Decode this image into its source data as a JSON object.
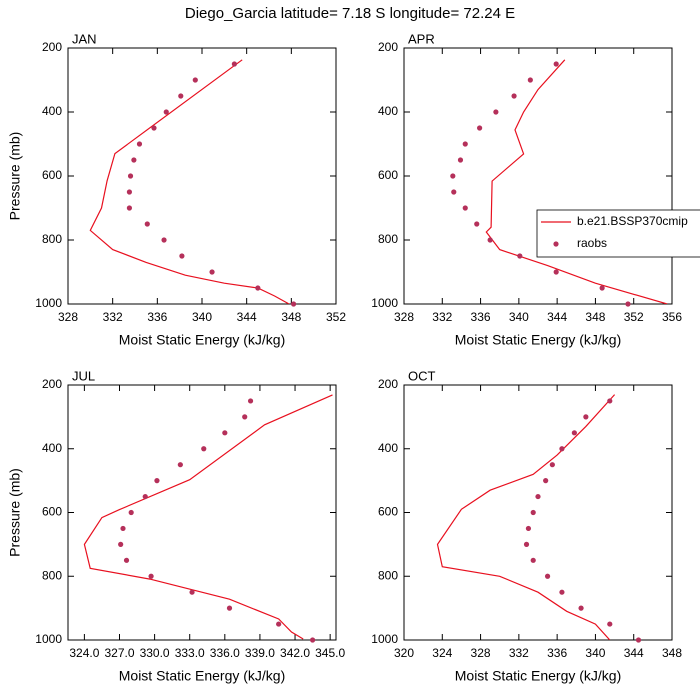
{
  "title": "Diego_Garcia  latitude= 7.18 S longitude= 72.24 E",
  "chart_data": [
    {
      "type": "line",
      "title": "JAN",
      "xlabel": "Moist Static Energy (kJ/kg)",
      "ylabel": "Pressure (mb)",
      "xlim": [
        328,
        352
      ],
      "xticks": [
        328,
        332,
        336,
        340,
        344,
        348,
        352
      ],
      "ylim": [
        1000,
        200
      ],
      "yticks": [
        200,
        400,
        600,
        800,
        1000
      ],
      "series": [
        {
          "color": "#e8101f",
          "style": "line",
          "x": [
            343.6,
            332.2,
            331.5,
            331.0,
            330.0,
            332.0,
            335.0,
            338.5,
            342.0,
            345.0,
            346.5,
            347.8
          ],
          "y": [
            237,
            530,
            615,
            700,
            770,
            830,
            870,
            910,
            935,
            950,
            975,
            1000
          ]
        },
        {
          "color": "#b5305a",
          "style": "marker",
          "x": [
            342.9,
            339.4,
            338.1,
            336.8,
            335.7,
            334.4,
            333.9,
            333.6,
            333.5,
            333.5,
            335.1,
            336.6,
            338.2,
            340.9,
            345.0,
            348.2
          ],
          "y": [
            250,
            300,
            350,
            400,
            450,
            500,
            550,
            600,
            650,
            700,
            750,
            800,
            850,
            900,
            950,
            1000
          ]
        }
      ]
    },
    {
      "type": "line",
      "title": "APR",
      "xlabel": "Moist Static Energy (kJ/kg)",
      "xlim": [
        328,
        356
      ],
      "xticks": [
        328,
        332,
        336,
        340,
        344,
        348,
        352,
        356
      ],
      "ylim": [
        1000,
        200
      ],
      "yticks": [
        200,
        400,
        600,
        800,
        1000
      ],
      "legend": "right",
      "series": [
        {
          "name": "b.e21.BSSP370cmip",
          "color": "#e8101f",
          "style": "line",
          "x": [
            344.8,
            342.0,
            340.5,
            339.6,
            340.5,
            337.2,
            337.1,
            336.6,
            338.0,
            343.0,
            348.0,
            355.5
          ],
          "y": [
            237,
            330,
            400,
            456,
            531,
            616,
            760,
            775,
            830,
            880,
            935,
            1000
          ]
        },
        {
          "name": "raobs",
          "color": "#b5305a",
          "style": "marker",
          "x": [
            343.9,
            341.2,
            339.5,
            337.6,
            335.9,
            334.4,
            333.9,
            333.1,
            333.2,
            334.4,
            335.6,
            337.0,
            340.1,
            343.9,
            348.7,
            351.4
          ],
          "y": [
            250,
            300,
            350,
            400,
            450,
            500,
            550,
            600,
            650,
            700,
            750,
            800,
            850,
            900,
            950,
            1000
          ]
        }
      ]
    },
    {
      "type": "line",
      "title": "JUL",
      "xlabel": "Moist Static Energy (kJ/kg)",
      "ylabel": "Pressure (mb)",
      "xlim": [
        322.6,
        345.5
      ],
      "xticks": [
        {
          "value": 324,
          "label": "324.0"
        },
        {
          "value": 327,
          "label": "327.0"
        },
        {
          "value": 330,
          "label": "330.0"
        },
        {
          "value": 333,
          "label": "333.0"
        },
        {
          "value": 336,
          "label": "336.0"
        },
        {
          "value": 339,
          "label": "339.0"
        },
        {
          "value": 342,
          "label": "342.0"
        },
        {
          "value": 345,
          "label": "345.0"
        }
      ],
      "ylim": [
        1000,
        200
      ],
      "yticks": [
        200,
        400,
        600,
        800,
        1000
      ],
      "series": [
        {
          "color": "#e8101f",
          "style": "line",
          "x": [
            345.2,
            339.4,
            333.0,
            327.0,
            325.5,
            324.0,
            324.5,
            329.6,
            336.4,
            340.6,
            341.7,
            342.7
          ],
          "y": [
            231,
            325,
            497,
            591,
            616,
            700,
            775,
            809,
            872,
            934,
            975,
            997
          ]
        },
        {
          "color": "#b5305a",
          "style": "marker",
          "x": [
            338.2,
            337.7,
            336.0,
            334.2,
            332.2,
            330.2,
            329.2,
            328.0,
            327.3,
            327.1,
            327.6,
            329.7,
            333.2,
            336.4,
            340.6,
            343.5
          ],
          "y": [
            250,
            300,
            350,
            400,
            450,
            500,
            550,
            600,
            650,
            700,
            750,
            800,
            850,
            900,
            950,
            1000
          ]
        }
      ]
    },
    {
      "type": "line",
      "title": "OCT",
      "xlabel": "Moist Static Energy (kJ/kg)",
      "xlim": [
        320,
        348
      ],
      "xticks": [
        320,
        324,
        328,
        332,
        336,
        340,
        344,
        348
      ],
      "ylim": [
        1000,
        200
      ],
      "yticks": [
        200,
        400,
        600,
        800,
        1000
      ],
      "series": [
        {
          "color": "#e8101f",
          "style": "line",
          "x": [
            342.0,
            339.0,
            336.0,
            333.5,
            329.0,
            326.0,
            323.5,
            324.0,
            330.0,
            334.0,
            337.0,
            340.0,
            341.5
          ],
          "y": [
            230,
            330,
            420,
            480,
            530,
            590,
            700,
            770,
            800,
            850,
            910,
            950,
            1000
          ]
        },
        {
          "color": "#b5305a",
          "style": "marker",
          "x": [
            341.5,
            339.0,
            337.8,
            336.5,
            335.5,
            334.8,
            334.0,
            333.5,
            333.0,
            332.8,
            333.5,
            335.0,
            336.5,
            338.5,
            341.5,
            344.5
          ],
          "y": [
            250,
            300,
            350,
            400,
            450,
            500,
            550,
            600,
            650,
            700,
            750,
            800,
            850,
            900,
            950,
            1000
          ]
        }
      ]
    }
  ]
}
